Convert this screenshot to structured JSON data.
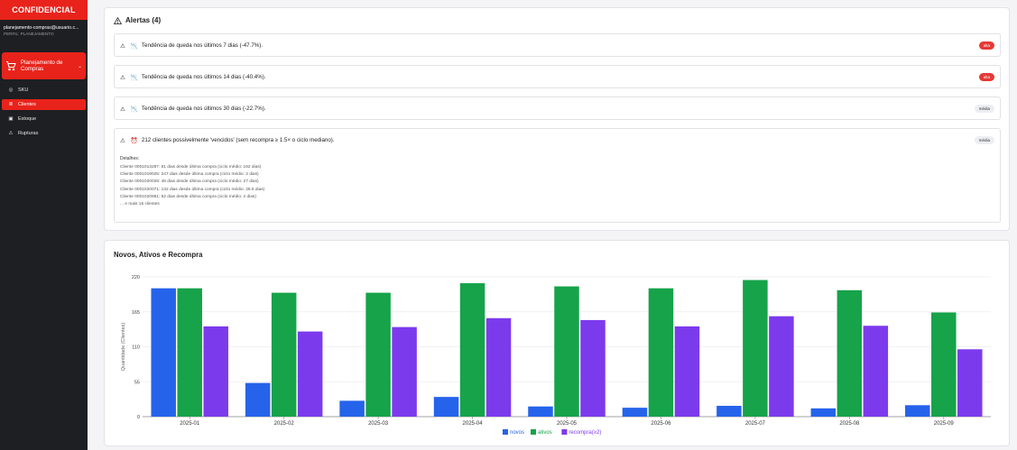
{
  "sidebar": {
    "brand": "CONFIDENCIAL",
    "email": "planejamento-compras@usuario.c...",
    "role": "PERFIL: PLANEJAMENTO",
    "group_label": "Planejamento de Compras",
    "items": [
      {
        "label": "SKU",
        "icon": "target-icon",
        "glyph": "◎"
      },
      {
        "label": "Clientes",
        "icon": "list-icon",
        "glyph": "≣"
      },
      {
        "label": "Estoque",
        "icon": "box-icon",
        "glyph": "▣"
      },
      {
        "label": "Rupturas",
        "icon": "warning-icon",
        "glyph": "⚠"
      }
    ],
    "active_index": 1,
    "accent": "#e8231b"
  },
  "alerts": {
    "title": "Alertas (4)",
    "items": [
      {
        "emoji": "📉",
        "text": "Tendência de queda nos últimos 7 dias (-47.7%).",
        "severity": "alta"
      },
      {
        "emoji": "📉",
        "text": "Tendência de queda nos últimos 14 dias (-40.4%).",
        "severity": "alta"
      },
      {
        "emoji": "📉",
        "text": "Tendência de queda nos últimos 30 dias (-22.7%).",
        "severity": "média"
      },
      {
        "emoji": "⏰",
        "text": "212 clientes possivelmente 'vencidos' (sem recompra ≥ 1.5× o ciclo mediano).",
        "severity": "média"
      }
    ],
    "details_title": "Detalhes:",
    "details": [
      "Cliente 0001013287: 61 dias desde última compra (ciclo médio: 162 dias)",
      "Cliente 0001019025: 247 dias desde última compra (ciclo médio: 2 dias)",
      "Cliente 0001020028: 48 dias desde última compra (ciclo médio: 27 dias)",
      "Cliente 0001020071: 132 dias desde última compra (ciclo médio: 28.5 dias)",
      "Cliente 0001020951: 52 dias desde última compra (ciclo médio: 2 dias)",
      "... e mais 15 clientes"
    ]
  },
  "chart": {
    "title": "Novos, Ativos e Recompra"
  },
  "chart_data": {
    "type": "bar",
    "title": "Novos, Ativos e Recompra",
    "ylabel": "Quantidade (Clientes)",
    "xlabel": "",
    "ylim": [
      0,
      220
    ],
    "yticks": [
      0,
      55,
      110,
      165,
      220
    ],
    "categories": [
      "2025-01",
      "2025-02",
      "2025-03",
      "2025-04",
      "2025-05",
      "2025-06",
      "2025-07",
      "2025-08",
      "2025-09"
    ],
    "series": [
      {
        "name": "novos",
        "color": "#2563eb",
        "values": [
          202,
          53,
          25,
          31,
          16,
          14,
          17,
          13,
          18
        ]
      },
      {
        "name": "ativos",
        "color": "#16a34a",
        "values": [
          202,
          195,
          195,
          210,
          205,
          202,
          215,
          199,
          164
        ]
      },
      {
        "name": "recompra(≥2)",
        "color": "#7c3aed",
        "values": [
          142,
          134,
          141,
          155,
          152,
          142,
          158,
          143,
          106
        ]
      }
    ],
    "legend": "bottom-center",
    "grid": true
  }
}
